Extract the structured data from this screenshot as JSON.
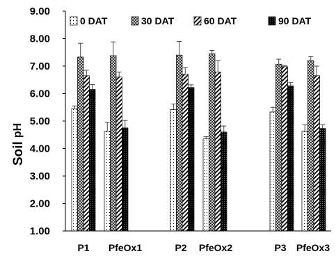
{
  "chart_data": {
    "type": "bar",
    "ylabel_main": "Soil",
    "ylabel_sub": "pH",
    "ylim": [
      1.0,
      9.0
    ],
    "yticks": [
      "1.00",
      "2.00",
      "3.00",
      "4.00",
      "5.00",
      "6.00",
      "7.00",
      "8.00",
      "9.00"
    ],
    "ytick_values": [
      1,
      2,
      3,
      4,
      5,
      6,
      7,
      8,
      9
    ],
    "categories": [
      "P1",
      "PfeOx1",
      "P2",
      "PfeOx2",
      "P3",
      "PfeOx3"
    ],
    "legend_position": "top",
    "series": [
      {
        "name": "0 DAT",
        "pattern": "dots",
        "values": [
          5.45,
          4.63,
          5.42,
          4.35,
          5.33,
          4.63
        ],
        "errors": [
          0.1,
          0.32,
          0.2,
          0.08,
          0.17,
          0.23
        ]
      },
      {
        "name": "30 DAT",
        "pattern": "checker",
        "values": [
          7.33,
          7.38,
          7.4,
          7.45,
          7.07,
          7.2
        ],
        "errors": [
          0.5,
          0.5,
          0.5,
          0.12,
          0.18,
          0.14
        ]
      },
      {
        "name": "60 DAT",
        "pattern": "diagonal",
        "values": [
          6.65,
          6.6,
          6.7,
          6.78,
          6.98,
          6.65
        ],
        "errors": [
          0.2,
          0.18,
          0.24,
          0.42,
          0.04,
          0.35
        ]
      },
      {
        "name": "90 DAT",
        "pattern": "dense",
        "values": [
          6.15,
          4.75,
          6.22,
          4.6,
          6.28,
          4.73
        ],
        "errors": [
          0.18,
          0.27,
          0.1,
          0.22,
          0.12,
          0.14
        ]
      }
    ]
  }
}
